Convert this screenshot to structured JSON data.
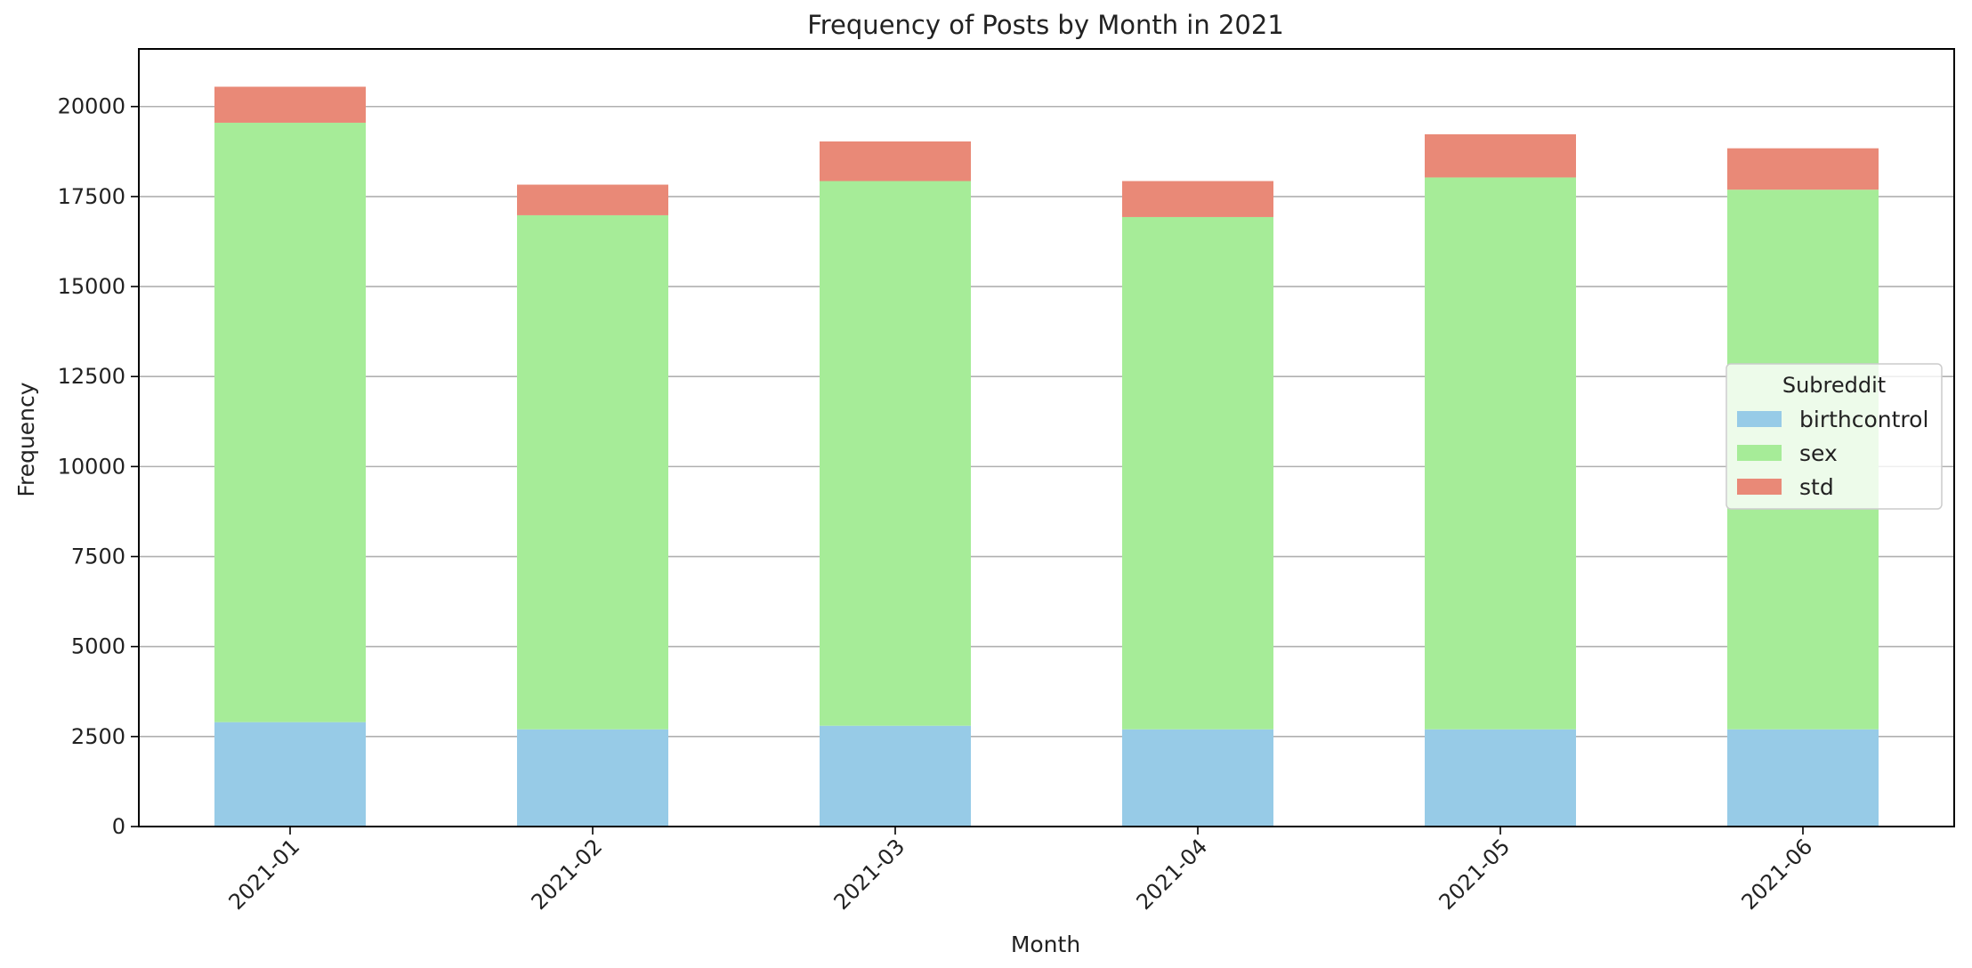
{
  "chart_data": {
    "type": "bar",
    "stacked": true,
    "title": "Frequency of Posts by Month in 2021",
    "xlabel": "Month",
    "ylabel": "Frequency",
    "categories": [
      "2021-01",
      "2021-02",
      "2021-03",
      "2021-04",
      "2021-05",
      "2021-06"
    ],
    "series": [
      {
        "name": "birthcontrol",
        "color": "#97cbe7",
        "values": [
          2900,
          2700,
          2800,
          2700,
          2700,
          2700
        ]
      },
      {
        "name": "sex",
        "color": "#a6ec98",
        "values": [
          16650,
          14280,
          15130,
          14230,
          15330,
          14990
        ]
      },
      {
        "name": "std",
        "color": "#e98977",
        "values": [
          1000,
          850,
          1100,
          1000,
          1200,
          1150
        ]
      }
    ],
    "ylim": [
      0,
      21600
    ],
    "yticks": [
      0,
      2500,
      5000,
      7500,
      10000,
      12500,
      15000,
      17500,
      20000
    ],
    "grid": "y",
    "legend": {
      "title": "Subreddit",
      "placement": "center-right"
    }
  }
}
